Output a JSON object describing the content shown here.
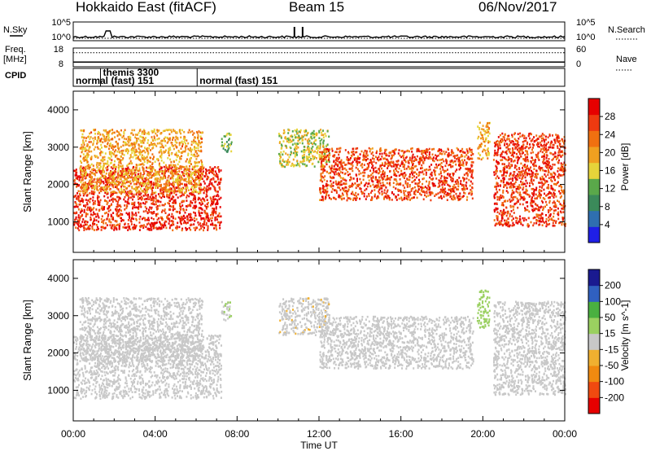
{
  "header": {
    "station": "Hokkaido East (fitACF)",
    "beam": "Beam 15",
    "date": "06/Nov/2017"
  },
  "left_labels": {
    "nsky": "N.Sky",
    "freq_line1": "Freq.",
    "freq_line2": "[MHz]",
    "cpid": "CPID"
  },
  "right_labels": {
    "nsearch": "N.Search",
    "nave": "Nave"
  },
  "noise_panel": {
    "left_ticks": [
      "10^5",
      "10^0"
    ],
    "right_ticks": [
      "10^5",
      "10^0"
    ]
  },
  "freq_panel": {
    "left_ticks": [
      "18",
      "8"
    ],
    "right_ticks": [
      "60",
      "0"
    ],
    "freq_mhz": 10.5,
    "nave": 45
  },
  "cpid_segments": [
    {
      "label": "normal (fast) 151",
      "start_h": 0.0,
      "end_h": 1.33
    },
    {
      "label": "themis 3300",
      "start_h": 1.33,
      "end_h": 6.05
    },
    {
      "label": "normal (fast) 151",
      "start_h": 6.05,
      "end_h": 24.0
    }
  ],
  "colors": {
    "power_scale": [
      "#1f1fe6",
      "#2f6fb0",
      "#3b8a5a",
      "#5aa84a",
      "#e6d43a",
      "#f0a020",
      "#f07010",
      "#ee3a10",
      "#e60000"
    ],
    "velocity_scale": [
      "#e60000",
      "#f04a10",
      "#f08a10",
      "#f0b030",
      "#c8c8c8",
      "#9ad060",
      "#4ab040",
      "#3060c0",
      "#1a1a90"
    ]
  },
  "chart_data": [
    {
      "type": "heatmap",
      "title": "",
      "ylabel": "Slant Range [km]",
      "xlabel": "",
      "x_range_h": [
        0,
        24
      ],
      "ylim": [
        180,
        4500
      ],
      "yticks": [
        "1000",
        "2000",
        "3000",
        "4000"
      ],
      "colorbar_label": "Power [dB]",
      "colorbar_ticks": [
        "28",
        "24",
        "20",
        "16",
        "12",
        "8",
        "4"
      ],
      "colorbar_range": [
        0,
        32
      ],
      "echo_regions": [
        {
          "start_h": 0.0,
          "end_h": 7.2,
          "range_km": [
            800,
            2500
          ],
          "value": 28
        },
        {
          "start_h": 0.3,
          "end_h": 6.3,
          "range_km": [
            1800,
            3500
          ],
          "value": 20
        },
        {
          "start_h": 7.2,
          "end_h": 7.7,
          "range_km": [
            2900,
            3400
          ],
          "value": 12
        },
        {
          "start_h": 10.0,
          "end_h": 12.5,
          "range_km": [
            2500,
            3500
          ],
          "value": 16
        },
        {
          "start_h": 12.0,
          "end_h": 19.5,
          "range_km": [
            1600,
            3000
          ],
          "value": 26
        },
        {
          "start_h": 19.7,
          "end_h": 20.3,
          "range_km": [
            2700,
            3700
          ],
          "value": 20
        },
        {
          "start_h": 20.5,
          "end_h": 24.0,
          "range_km": [
            900,
            3400
          ],
          "value": 27
        }
      ]
    },
    {
      "type": "heatmap",
      "title": "",
      "ylabel": "Slant Range [km]",
      "xlabel": "Time UT",
      "x_range_h": [
        0,
        24
      ],
      "xticks": [
        "00:00",
        "04:00",
        "08:00",
        "12:00",
        "16:00",
        "20:00",
        "00:00"
      ],
      "ylim": [
        180,
        4500
      ],
      "yticks": [
        "1000",
        "2000",
        "3000",
        "4000"
      ],
      "colorbar_label": "Velocity [m s^-1]",
      "colorbar_ticks": [
        "200",
        "100",
        "50",
        "15",
        "-15",
        "-50",
        "-100",
        "-200"
      ],
      "colorbar_range": [
        -250,
        250
      ],
      "echo_regions": [
        {
          "start_h": 0.0,
          "end_h": 7.2,
          "range_km": [
            800,
            2500
          ],
          "value": 0
        },
        {
          "start_h": 0.3,
          "end_h": 6.3,
          "range_km": [
            1800,
            3500
          ],
          "value": -5
        },
        {
          "start_h": 7.2,
          "end_h": 7.7,
          "range_km": [
            2900,
            3400
          ],
          "value": 20
        },
        {
          "start_h": 10.0,
          "end_h": 12.5,
          "range_km": [
            2500,
            3500
          ],
          "value": -10
        },
        {
          "start_h": 12.0,
          "end_h": 19.5,
          "range_km": [
            1600,
            3000
          ],
          "value": 0
        },
        {
          "start_h": 19.7,
          "end_h": 20.3,
          "range_km": [
            2700,
            3700
          ],
          "value": 60
        },
        {
          "start_h": 20.5,
          "end_h": 24.0,
          "range_km": [
            900,
            3400
          ],
          "value": 0
        }
      ]
    }
  ]
}
